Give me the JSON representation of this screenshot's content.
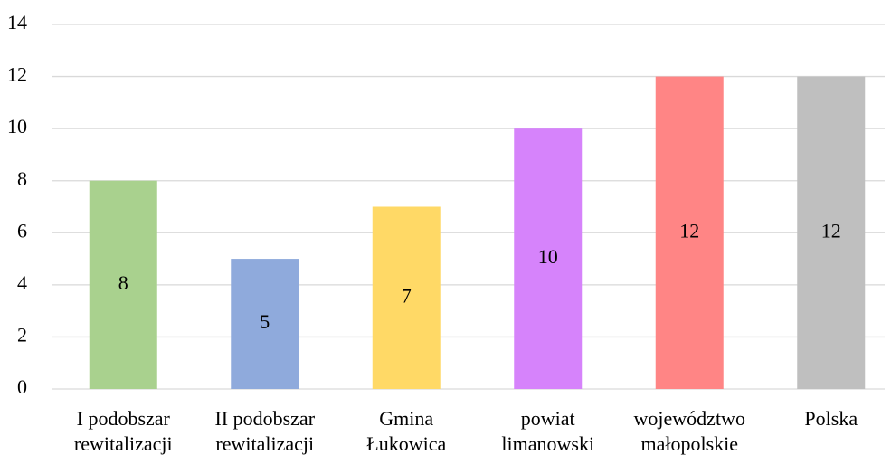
{
  "chart_data": {
    "type": "bar",
    "categories": [
      [
        "I podobszar",
        "rewitalizacji"
      ],
      [
        "II podobszar",
        "rewitalizacji"
      ],
      [
        "Gmina",
        "Łukowica"
      ],
      [
        "powiat",
        "limanowski"
      ],
      [
        "województwo",
        "małopolskie"
      ],
      [
        "Polska"
      ]
    ],
    "values": [
      8,
      5,
      7,
      10,
      12,
      12
    ],
    "colors": [
      "#a9d18e",
      "#8faadc",
      "#ffd966",
      "#d683fb",
      "#ff8585",
      "#bfbfbf"
    ],
    "ylim": [
      0,
      14
    ],
    "yticks": [
      0,
      2,
      4,
      6,
      8,
      10,
      12,
      14
    ],
    "grid": true,
    "data_labels": true
  }
}
